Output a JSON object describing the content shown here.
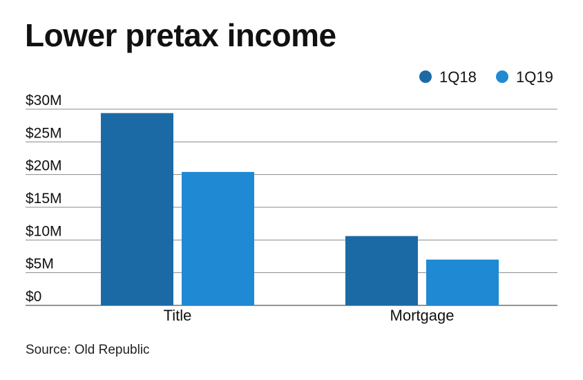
{
  "header": {
    "title": "Lower pretax income"
  },
  "footer": {
    "source": "Source: Old Republic"
  },
  "chart_data": {
    "type": "bar",
    "title": "Lower pretax income",
    "categories": [
      "Title",
      "Mortgage"
    ],
    "series": [
      {
        "name": "1Q18",
        "color": "#1b6aa5",
        "values": [
          29.4,
          10.6
        ]
      },
      {
        "name": "1Q19",
        "color": "#1f89d3",
        "values": [
          20.4,
          7.0
        ]
      }
    ],
    "y_ticks": [
      0,
      5,
      10,
      15,
      20,
      25,
      30
    ],
    "y_tick_labels": [
      "$0",
      "$5M",
      "$10M",
      "$15M",
      "$20M",
      "$25M",
      "$30M"
    ],
    "ylim": [
      0,
      30
    ],
    "grid": true,
    "legend_position": "top-right",
    "xlabel": "",
    "ylabel": ""
  }
}
